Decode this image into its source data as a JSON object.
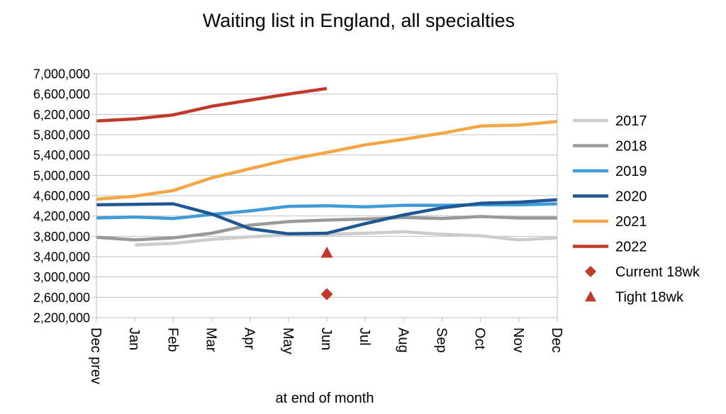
{
  "chart_data": {
    "type": "line",
    "title": "Waiting list in England, all specialties",
    "xlabel": "at end of month",
    "ylabel": "",
    "ylim": [
      2200000,
      7000000
    ],
    "y_ticks": [
      2200000,
      2600000,
      3000000,
      3400000,
      3800000,
      4200000,
      4600000,
      5000000,
      5400000,
      5800000,
      6200000,
      6600000,
      7000000
    ],
    "y_tick_labels": [
      "2,200,000",
      "2,600,000",
      "3,000,000",
      "3,400,000",
      "3,800,000",
      "4,200,000",
      "4,600,000",
      "5,000,000",
      "5,400,000",
      "5,800,000",
      "6,200,000",
      "6,600,000",
      "7,000,000"
    ],
    "categories": [
      "Dec prev",
      "Jan",
      "Feb",
      "Mar",
      "Apr",
      "May",
      "Jun",
      "Jul",
      "Aug",
      "Sep",
      "Oct",
      "Nov",
      "Dec"
    ],
    "grid": "horizontal",
    "legend_position": "right",
    "series": [
      {
        "name": "2017",
        "color": "#cccccc",
        "values": [
          null,
          3630000,
          3660000,
          3740000,
          3790000,
          3830000,
          3840000,
          3860000,
          3890000,
          3840000,
          3810000,
          3730000,
          3770000
        ]
      },
      {
        "name": "2018",
        "color": "#999999",
        "values": [
          3780000,
          3730000,
          3770000,
          3860000,
          4020000,
          4090000,
          4120000,
          4140000,
          4170000,
          4150000,
          4190000,
          4160000,
          4160000
        ]
      },
      {
        "name": "2019",
        "color": "#3f9bd8",
        "values": [
          4160000,
          4180000,
          4150000,
          4230000,
          4300000,
          4390000,
          4400000,
          4380000,
          4410000,
          4410000,
          4420000,
          4420000,
          4440000
        ]
      },
      {
        "name": "2020",
        "color": "#1f5694",
        "values": [
          4420000,
          4430000,
          4440000,
          4240000,
          3950000,
          3850000,
          3860000,
          4050000,
          4220000,
          4360000,
          4450000,
          4470000,
          4520000
        ]
      },
      {
        "name": "2021",
        "color": "#f2a744",
        "values": [
          4530000,
          4590000,
          4700000,
          4950000,
          5130000,
          5310000,
          5450000,
          5600000,
          5710000,
          5830000,
          5970000,
          5990000,
          6060000
        ]
      },
      {
        "name": "2022",
        "color": "#c0392b",
        "values": [
          6070000,
          6110000,
          6190000,
          6360000,
          6480000,
          6600000,
          6710000,
          null,
          null,
          null,
          null,
          null,
          null
        ]
      }
    ],
    "markers": [
      {
        "name": "Current 18wk",
        "shape": "diamond",
        "color": "#c0392b",
        "x": "Jun",
        "y": 2660000
      },
      {
        "name": "Tight 18wk",
        "shape": "triangle",
        "color": "#c0392b",
        "x": "Jun",
        "y": 3480000
      }
    ]
  }
}
